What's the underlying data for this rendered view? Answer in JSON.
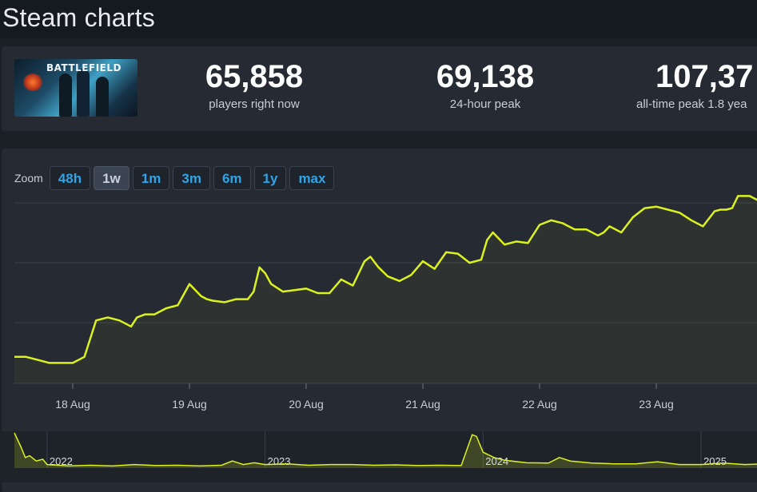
{
  "header": {
    "title": "Steam charts"
  },
  "stats": {
    "game_image_label": "BATTLEFIELD",
    "items": [
      {
        "value": "65,858",
        "label": "players right now"
      },
      {
        "value": "69,138",
        "label": "24-hour peak"
      },
      {
        "value": "107,37",
        "label": "all-time peak 1.8 yea"
      }
    ]
  },
  "zoom": {
    "label": "Zoom",
    "options": [
      "48h",
      "1w",
      "1m",
      "3m",
      "6m",
      "1y",
      "max"
    ],
    "active": "1w"
  },
  "colors": {
    "line": "#dcf21f",
    "accent": "#2fa4e7"
  },
  "chart_data": [
    {
      "type": "line",
      "title": "",
      "x_tick_labels": [
        "18 Aug",
        "19 Aug",
        "20 Aug",
        "21 Aug",
        "22 Aug",
        "23 Aug",
        "2"
      ],
      "x_day_range": [
        17.5,
        24.45
      ],
      "y_normalized_range": [
        0,
        1
      ],
      "grid": true,
      "y_axis_labels_visible": false,
      "note_units": "x in days of August (e.g. 18.0 = 18 Aug 00:00); y is relative player count (axis values not shown)",
      "series": [
        {
          "x": [
            17.5,
            17.6,
            17.7,
            17.8,
            17.9,
            18.0,
            18.1,
            18.2,
            18.3,
            18.4,
            18.5,
            18.55,
            18.62,
            18.7,
            18.8,
            18.9,
            19.0,
            19.1,
            19.15,
            19.2,
            19.3,
            19.4,
            19.5,
            19.55,
            19.6,
            19.65,
            19.7,
            19.8,
            19.9,
            20.0,
            20.1,
            20.2,
            20.3,
            20.4,
            20.5,
            20.55,
            20.62,
            20.7,
            20.8,
            20.9,
            21.0,
            21.1,
            21.2,
            21.3,
            21.4,
            21.5,
            21.55,
            21.6,
            21.65,
            21.7,
            21.8,
            21.9,
            22.0,
            22.1,
            22.2,
            22.3,
            22.4,
            22.5,
            22.55,
            22.6,
            22.65,
            22.7,
            22.8,
            22.9,
            23.0,
            23.1,
            23.2,
            23.3,
            23.4,
            23.5,
            23.55,
            23.6,
            23.65,
            23.7,
            23.8,
            23.9,
            24.0
          ],
          "y": [
            0.08,
            0.08,
            0.06,
            0.04,
            0.04,
            0.04,
            0.08,
            0.32,
            0.34,
            0.32,
            0.28,
            0.34,
            0.36,
            0.36,
            0.4,
            0.42,
            0.56,
            0.48,
            0.46,
            0.45,
            0.44,
            0.46,
            0.46,
            0.51,
            0.67,
            0.63,
            0.56,
            0.51,
            0.52,
            0.53,
            0.5,
            0.5,
            0.59,
            0.55,
            0.71,
            0.74,
            0.67,
            0.61,
            0.58,
            0.62,
            0.71,
            0.66,
            0.77,
            0.76,
            0.7,
            0.72,
            0.85,
            0.9,
            0.86,
            0.82,
            0.84,
            0.83,
            0.95,
            0.98,
            0.96,
            0.92,
            0.92,
            0.88,
            0.9,
            0.94,
            0.92,
            0.9,
            1.0,
            1.06,
            1.07,
            1.05,
            1.03,
            0.98,
            0.94,
            1.04,
            1.05,
            1.05,
            1.06,
            1.14,
            1.14,
            1.1,
            1.1
          ],
          "name": ""
        }
      ]
    },
    {
      "type": "area",
      "title": "",
      "x_tick_labels": [
        "2022",
        "2023",
        "2024",
        "2025"
      ],
      "x_year_range": [
        2021.85,
        2025.3
      ],
      "y_normalized_range": [
        0,
        1
      ],
      "note_units": "x in years (fractional); y is relative player count (axis values not shown)",
      "series": [
        {
          "x": [
            2021.85,
            2021.88,
            2021.9,
            2021.92,
            2021.95,
            2021.98,
            2022.0,
            2022.1,
            2022.2,
            2022.3,
            2022.4,
            2022.5,
            2022.6,
            2022.7,
            2022.8,
            2022.85,
            2022.9,
            2022.95,
            2023.0,
            2023.1,
            2023.2,
            2023.3,
            2023.4,
            2023.5,
            2023.6,
            2023.7,
            2023.8,
            2023.9,
            2023.95,
            2023.97,
            2024.0,
            2024.05,
            2024.1,
            2024.2,
            2024.3,
            2024.35,
            2024.4,
            2024.5,
            2024.6,
            2024.7,
            2024.8,
            2024.9,
            2025.0,
            2025.1,
            2025.2,
            2025.3
          ],
          "y": [
            1.0,
            0.6,
            0.3,
            0.35,
            0.2,
            0.25,
            0.1,
            0.06,
            0.08,
            0.06,
            0.1,
            0.07,
            0.08,
            0.06,
            0.08,
            0.2,
            0.1,
            0.15,
            0.1,
            0.12,
            0.08,
            0.1,
            0.1,
            0.08,
            0.09,
            0.07,
            0.08,
            0.07,
            0.95,
            0.9,
            0.45,
            0.3,
            0.22,
            0.15,
            0.14,
            0.3,
            0.2,
            0.14,
            0.12,
            0.12,
            0.18,
            0.1,
            0.1,
            0.14,
            0.1,
            0.12
          ],
          "name": ""
        }
      ]
    }
  ]
}
